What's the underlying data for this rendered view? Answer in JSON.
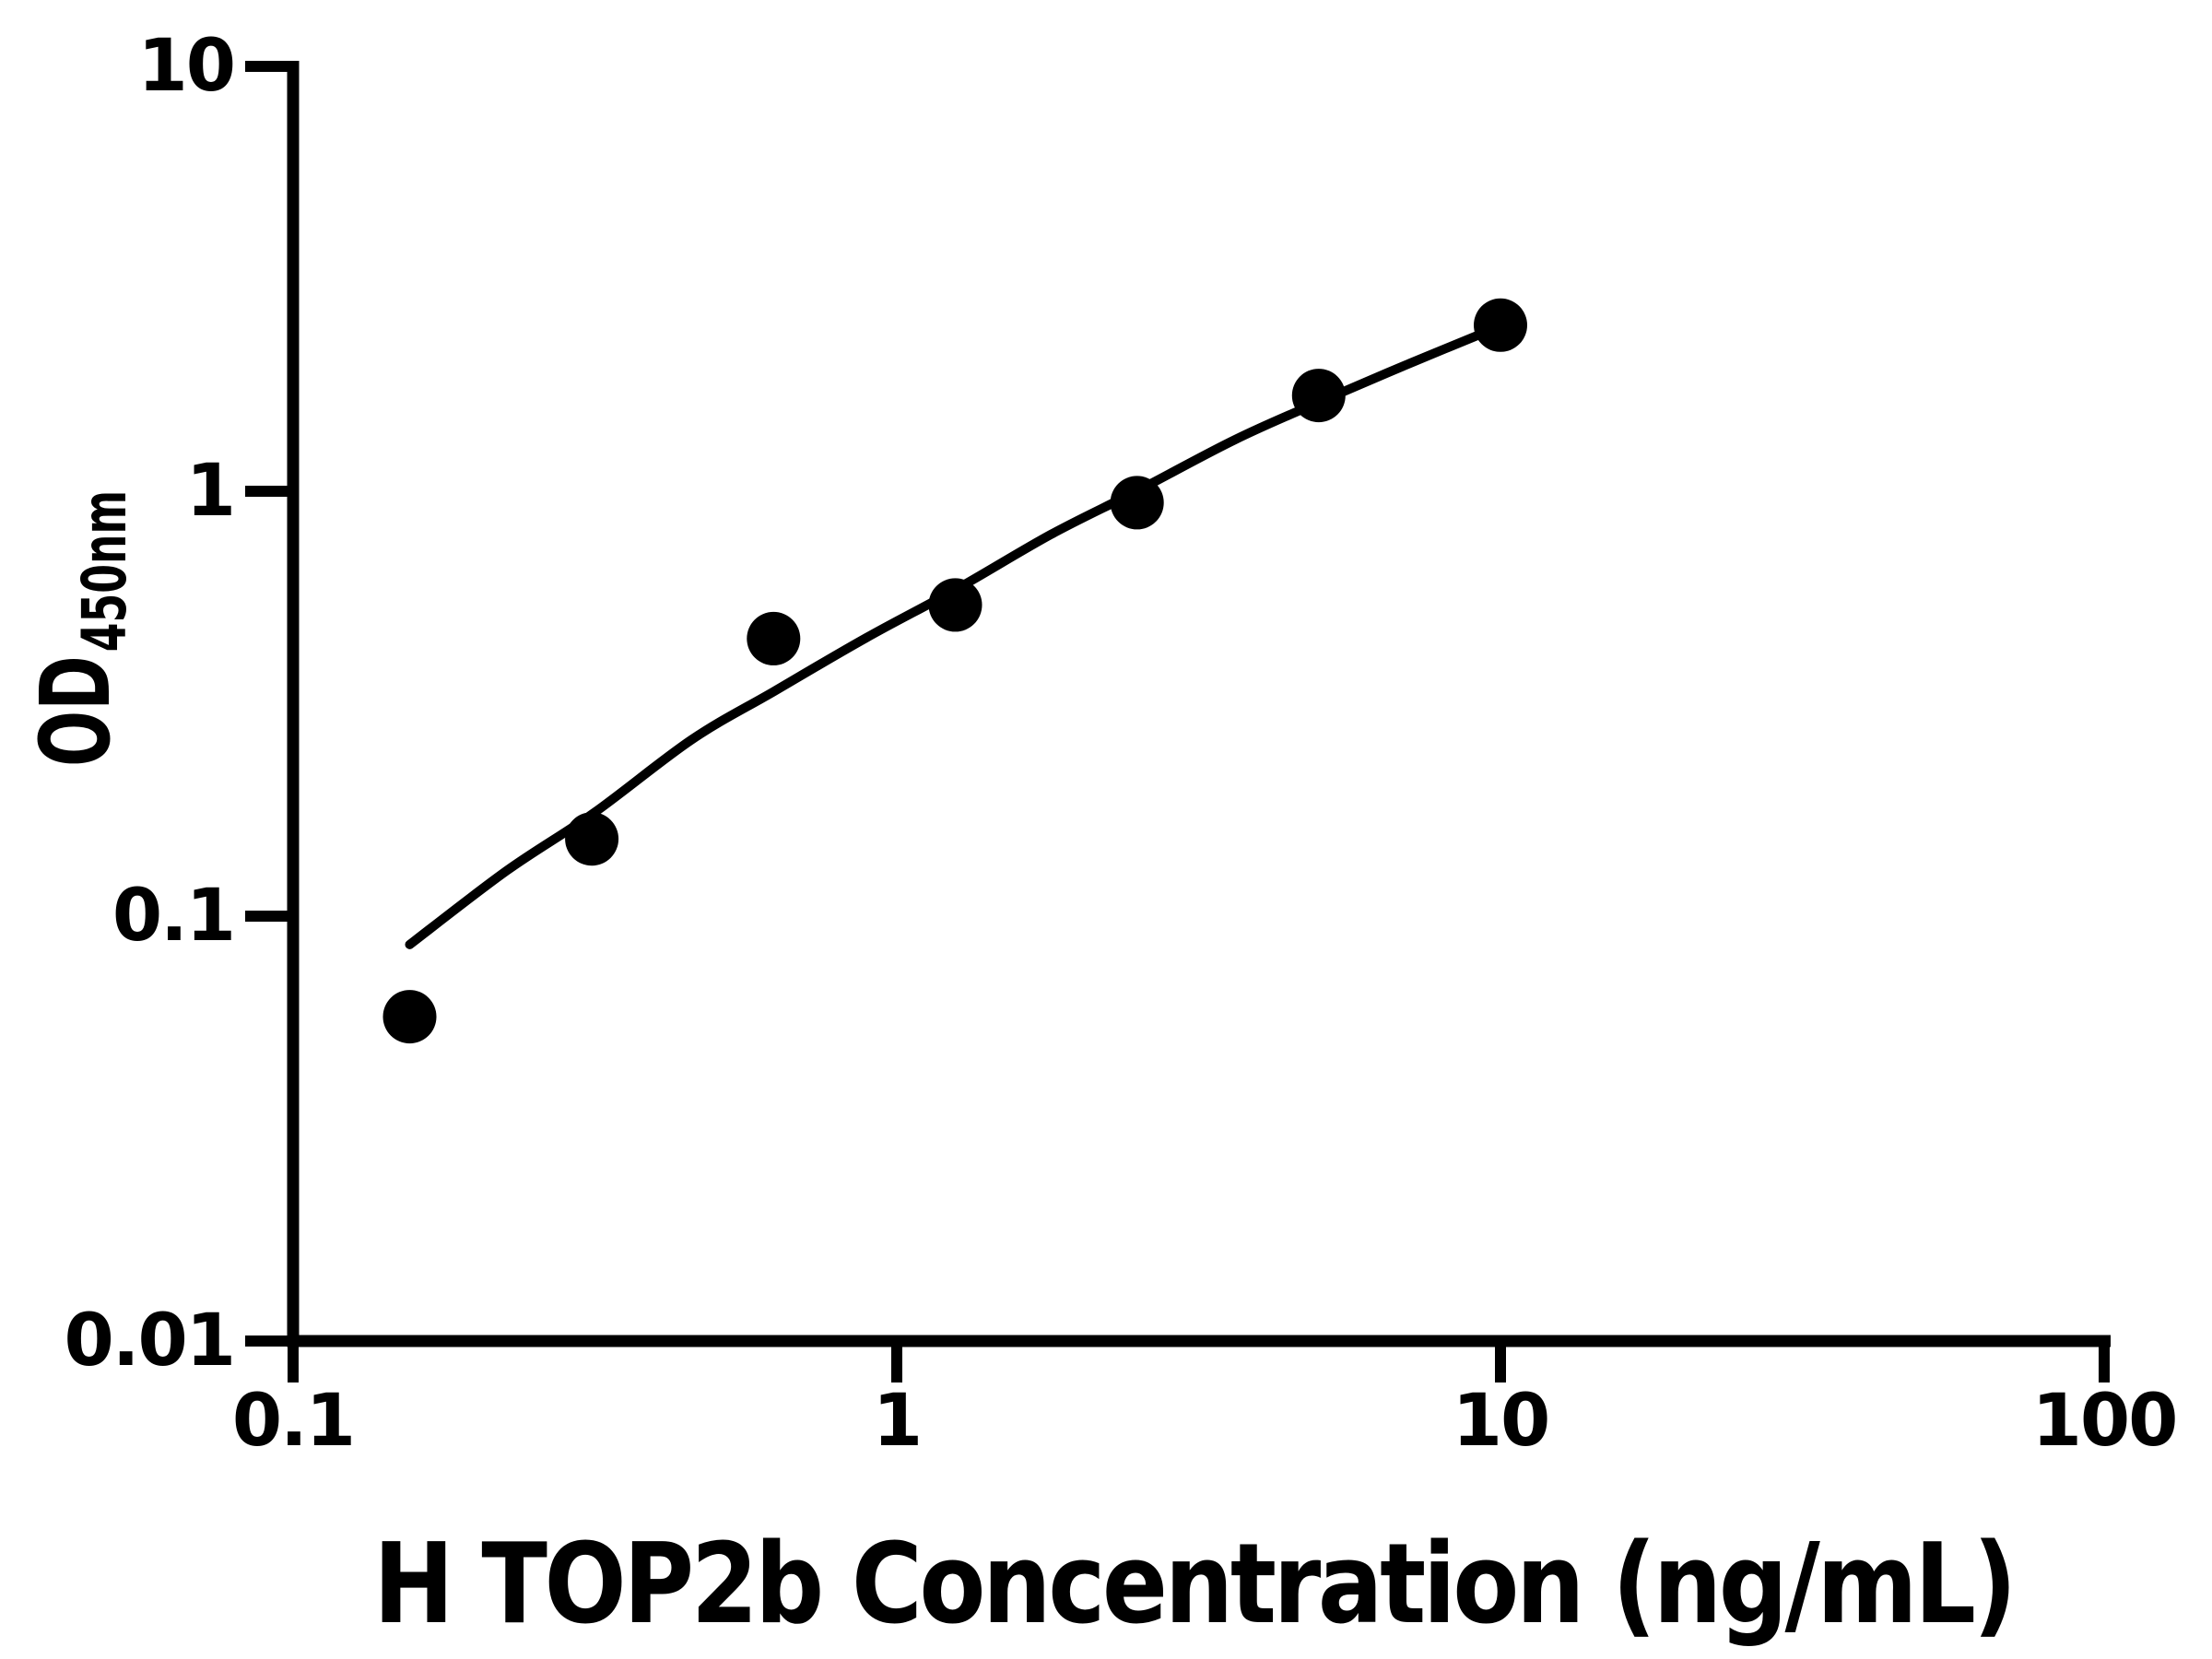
{
  "figure": {
    "background_color": "#ffffff",
    "ink_color": "#000000"
  },
  "chart_data": {
    "type": "scatter",
    "title": "",
    "xlabel": "H TOP2b Concentration (ng/mL)",
    "ylabel": "OD",
    "ylabel_subscript": "450nm",
    "x_scale": "log",
    "y_scale": "log",
    "xlim": [
      0.1,
      100
    ],
    "ylim": [
      0.01,
      10
    ],
    "x_ticks": [
      0.1,
      1,
      10,
      100
    ],
    "x_tick_labels": [
      "0.1",
      "1",
      "10",
      "100"
    ],
    "y_ticks": [
      10,
      1,
      0.1,
      0.01
    ],
    "y_tick_labels": [
      "10",
      "1",
      "0.1",
      "0.01"
    ],
    "grid": false,
    "legend": false,
    "series": [
      {
        "name": "standard-points",
        "type": "scatter",
        "marker": "filled-circle",
        "color": "#000000",
        "points": [
          {
            "x": 0.156,
            "y": 0.058
          },
          {
            "x": 0.3125,
            "y": 0.152
          },
          {
            "x": 0.625,
            "y": 0.45
          },
          {
            "x": 1.25,
            "y": 0.54
          },
          {
            "x": 2.5,
            "y": 0.94
          },
          {
            "x": 5,
            "y": 1.68
          },
          {
            "x": 10,
            "y": 2.46
          }
        ]
      },
      {
        "name": "fitted-curve",
        "type": "line",
        "color": "#000000",
        "points": [
          {
            "x": 0.156,
            "y": 0.0857
          },
          {
            "x": 0.226,
            "y": 0.128
          },
          {
            "x": 0.315,
            "y": 0.175
          },
          {
            "x": 0.457,
            "y": 0.26
          },
          {
            "x": 0.626,
            "y": 0.338
          },
          {
            "x": 0.89,
            "y": 0.452
          },
          {
            "x": 1.257,
            "y": 0.589
          },
          {
            "x": 1.8,
            "y": 0.791
          },
          {
            "x": 2.512,
            "y": 1.005
          },
          {
            "x": 3.634,
            "y": 1.323
          },
          {
            "x": 5.02,
            "y": 1.624
          },
          {
            "x": 7.09,
            "y": 2.002
          },
          {
            "x": 10.07,
            "y": 2.458
          }
        ]
      }
    ]
  }
}
